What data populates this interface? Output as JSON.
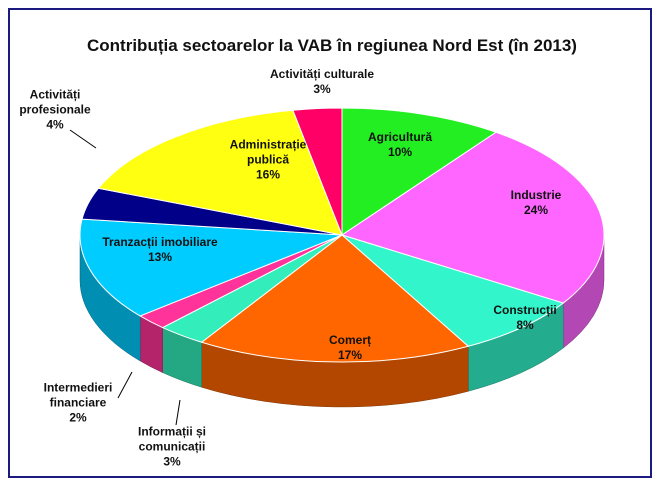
{
  "chart_data": {
    "type": "pie",
    "title": "Contribuția sectoarelor la VAB în regiunea Nord Est (în 2013)",
    "categories": [
      "Agricultură",
      "Industrie",
      "Construcții",
      "Comerț",
      "Informații și comunicații",
      "Intermedieri financiare",
      "Tranzacții imobiliare",
      "Activități profesionale",
      "Administrație publică",
      "Activități culturale"
    ],
    "values": [
      10,
      24,
      8,
      17,
      3,
      2,
      13,
      4,
      16,
      3
    ],
    "value_labels": [
      "10%",
      "24%",
      "8%",
      "17%",
      "3%",
      "2%",
      "13%",
      "4%",
      "16%",
      "3%"
    ],
    "colors": [
      "#22ee22",
      "#ff66ff",
      "#33f5cc",
      "#ff6600",
      "#33eebb",
      "#ff3399",
      "#00ccff",
      "#000088",
      "#ffff11",
      "#ff0066"
    ]
  }
}
